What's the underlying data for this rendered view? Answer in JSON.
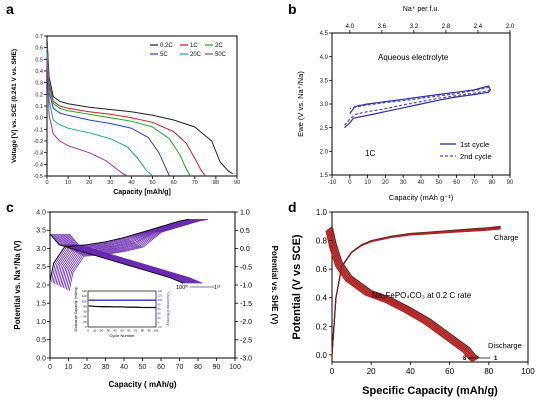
{
  "chart_data": [
    {
      "id": "a",
      "panel_label": "a",
      "type": "line",
      "xlabel": "Capacity [mAh/g]",
      "ylabel": "Voltage [V] vs. SCE (0.241 V vs. SHE)",
      "xlim": [
        0,
        90
      ],
      "ylim": [
        -0.5,
        0.7
      ],
      "xticks": [
        "0",
        "10",
        "20",
        "30",
        "40",
        "50",
        "60",
        "70",
        "80",
        "90"
      ],
      "yticks": [
        "-0.5",
        "-0.4",
        "-0.3",
        "-0.2",
        "-0.1",
        "0.0",
        "0.1",
        "0.2",
        "0.3",
        "0.4",
        "0.5",
        "0.6",
        "0.7"
      ],
      "series": [
        {
          "name": "0.2C",
          "color": "#222222",
          "x": [
            0,
            1,
            3,
            6,
            10,
            20,
            30,
            40,
            50,
            60,
            70,
            78,
            82,
            86,
            88
          ],
          "y": [
            0.68,
            0.35,
            0.18,
            0.14,
            0.12,
            0.09,
            0.07,
            0.05,
            0.02,
            -0.02,
            -0.08,
            -0.2,
            -0.38,
            -0.46,
            -0.48
          ]
        },
        {
          "name": "1C",
          "color": "#cc2222",
          "x": [
            0,
            1,
            3,
            6,
            10,
            20,
            30,
            40,
            50,
            60,
            66,
            70,
            73,
            75
          ],
          "y": [
            0.62,
            0.3,
            0.14,
            0.1,
            0.08,
            0.05,
            0.03,
            0.0,
            -0.04,
            -0.12,
            -0.22,
            -0.35,
            -0.45,
            -0.5
          ]
        },
        {
          "name": "2C",
          "color": "#22aa22",
          "x": [
            0,
            1,
            3,
            6,
            10,
            20,
            30,
            40,
            50,
            58,
            63,
            66,
            68
          ],
          "y": [
            0.6,
            0.27,
            0.12,
            0.08,
            0.06,
            0.03,
            0.0,
            -0.03,
            -0.08,
            -0.18,
            -0.32,
            -0.44,
            -0.5
          ]
        },
        {
          "name": "5C",
          "color": "#2244cc",
          "x": [
            0,
            1,
            3,
            6,
            10,
            20,
            30,
            40,
            48,
            53,
            56,
            58
          ],
          "y": [
            0.58,
            0.22,
            0.08,
            0.04,
            0.02,
            -0.02,
            -0.05,
            -0.09,
            -0.17,
            -0.3,
            -0.42,
            -0.5
          ]
        },
        {
          "name": "20C",
          "color": "#20a0b0",
          "x": [
            0,
            1,
            3,
            6,
            10,
            20,
            30,
            38,
            43,
            47,
            50
          ],
          "y": [
            0.55,
            0.15,
            -0.02,
            -0.06,
            -0.09,
            -0.13,
            -0.18,
            -0.25,
            -0.35,
            -0.45,
            -0.5
          ]
        },
        {
          "name": "50C",
          "color": "#b030b0",
          "x": [
            0,
            1,
            3,
            6,
            10,
            20,
            28,
            33,
            36,
            38
          ],
          "y": [
            0.5,
            0.02,
            -0.14,
            -0.2,
            -0.24,
            -0.3,
            -0.37,
            -0.44,
            -0.48,
            -0.5
          ]
        }
      ],
      "legend": "top-right",
      "grid": false
    },
    {
      "id": "b",
      "panel_label": "b",
      "type": "line",
      "xlabel": "Capacity (mAh g⁻¹)",
      "ylabel": "Ewe (V vs. Na⁺/Na)",
      "top_xlabel": "Na⁺ per f.u.",
      "top_xticks": [
        "4.0",
        "3.6",
        "3.2",
        "2.8",
        "2.4",
        "2.0"
      ],
      "xlim": [
        -10,
        90
      ],
      "ylim": [
        1.5,
        4.5
      ],
      "xticks": [
        "-10",
        "0",
        "10",
        "20",
        "30",
        "40",
        "50",
        "60",
        "70",
        "80",
        "90"
      ],
      "yticks": [
        "1.5",
        "2.0",
        "2.5",
        "3.0",
        "3.5",
        "4.0",
        "4.5"
      ],
      "annotations": [
        "Aqueous electrolyte",
        "1C"
      ],
      "series": [
        {
          "name": "1st cycle",
          "color": "#2233aa",
          "dash": false,
          "x": [
            -3,
            0,
            2,
            10,
            20,
            30,
            40,
            50,
            60,
            70,
            78,
            79,
            78,
            70,
            60,
            50,
            40,
            30,
            20,
            10,
            3,
            1,
            0
          ],
          "y": [
            2.5,
            2.6,
            2.7,
            2.76,
            2.84,
            2.92,
            3.0,
            3.08,
            3.15,
            3.2,
            3.25,
            3.3,
            3.38,
            3.3,
            3.25,
            3.2,
            3.15,
            3.1,
            3.05,
            3.0,
            2.95,
            2.85,
            2.8
          ]
        },
        {
          "name": "2nd cycle",
          "color": "#6644aa",
          "dash": true,
          "x": [
            -3,
            0,
            3,
            10,
            20,
            30,
            40,
            50,
            60,
            70,
            78,
            79,
            78,
            70,
            60,
            50,
            40,
            30,
            20,
            10,
            3,
            0
          ],
          "y": [
            2.55,
            2.68,
            2.78,
            2.84,
            2.9,
            2.98,
            3.05,
            3.12,
            3.18,
            3.23,
            3.28,
            3.32,
            3.35,
            3.28,
            3.22,
            3.17,
            3.12,
            3.07,
            3.03,
            2.98,
            2.93,
            2.9
          ]
        }
      ],
      "legend": "bottom-right",
      "grid": false
    },
    {
      "id": "c",
      "panel_label": "c",
      "type": "line",
      "xlabel": "Capacity ( mAh/g)",
      "ylabel": "Potential vs. Na⁺/Na (V)",
      "y2label": "Potential vs. SHE (V)",
      "xlim": [
        0,
        100
      ],
      "ylim": [
        0.0,
        4.0
      ],
      "y2lim": [
        -3.0,
        1.0
      ],
      "xticks": [
        "0",
        "10",
        "20",
        "30",
        "40",
        "50",
        "60",
        "70",
        "80",
        "90",
        "100"
      ],
      "yticks": [
        "0.0",
        "0.5",
        "1.0",
        "1.5",
        "2.0",
        "2.5",
        "3.0",
        "3.5",
        "4.0"
      ],
      "y2ticks": [
        "1.0",
        "0.5",
        "0.0",
        "-0.5",
        "-1.0",
        "-1.5",
        "-2.0",
        "-2.5",
        "-3.0"
      ],
      "annotations": [
        "100ᵗʰ",
        "1ˢᵗ"
      ],
      "charge_first": {
        "color": "#111111",
        "x": [
          0,
          2,
          8,
          20,
          30,
          40,
          50,
          60,
          70,
          75
        ],
        "y": [
          2.1,
          2.6,
          3.05,
          3.1,
          3.18,
          3.3,
          3.45,
          3.6,
          3.75,
          3.8
        ]
      },
      "discharge_first": {
        "color": "#111111",
        "x": [
          0,
          5,
          15,
          25,
          35,
          45,
          55,
          65,
          72
        ],
        "y": [
          3.4,
          3.1,
          2.95,
          2.8,
          2.65,
          2.5,
          2.35,
          2.2,
          2.05
        ]
      },
      "cycle_color": "#6a2ab0",
      "inset": {
        "type": "line",
        "xlabel": "Cycle Number",
        "ylabel": "Discharge Capacity (mAh/g)",
        "y2label": "Coulombic Efficiency",
        "xticks": [
          "0",
          "10",
          "20",
          "30",
          "40",
          "50",
          "60",
          "70",
          "80",
          "90",
          "100"
        ],
        "yticks": [
          "0",
          "20",
          "40",
          "60",
          "80",
          "100",
          "120",
          "140"
        ],
        "y2ticks": [
          "-20",
          "0",
          "20",
          "40",
          "60",
          "80",
          "100",
          "120",
          "140"
        ],
        "xlim": [
          0,
          100
        ],
        "ylim": [
          0,
          140
        ],
        "y2lim": [
          -20,
          140
        ],
        "series": [
          {
            "name": "Discharge Capacity",
            "color": "#111111",
            "x": [
              1,
              10,
              20,
              30,
              40,
              50,
              60,
              70,
              80,
              90,
              100
            ],
            "y": [
              82,
              80,
              79,
              79,
              78,
              78,
              77,
              77,
              76,
              76,
              76
            ]
          },
          {
            "name": "Coulombic Efficiency",
            "color": "#2233cc",
            "x": [
              1,
              10,
              20,
              30,
              40,
              50,
              60,
              70,
              80,
              90,
              100
            ],
            "y": [
              99,
              99,
              99,
              99,
              99,
              99,
              99,
              99,
              99,
              99,
              99
            ]
          }
        ]
      },
      "grid": false
    },
    {
      "id": "d",
      "panel_label": "d",
      "type": "line",
      "xlabel": "Specific Capacity (mAh/g)",
      "ylabel": "Potential (V vs SCE)",
      "xlim": [
        0,
        100
      ],
      "ylim": [
        -0.05,
        1.0
      ],
      "xticks": [
        "0",
        "20",
        "40",
        "60",
        "80",
        "100"
      ],
      "yticks": [
        "0.0",
        "0.2",
        "0.4",
        "0.6",
        "0.8",
        "1.0"
      ],
      "annotations": [
        "Charge",
        "Discharge",
        "Na₃FePO₄CO₃  at 0.2 C rate",
        "8",
        "1"
      ],
      "charge": {
        "color": "#b22222",
        "x": [
          0,
          2,
          5,
          10,
          15,
          20,
          30,
          40,
          50,
          60,
          70,
          80,
          86
        ],
        "y": [
          0.0,
          0.4,
          0.62,
          0.72,
          0.77,
          0.8,
          0.83,
          0.85,
          0.86,
          0.87,
          0.88,
          0.89,
          0.9
        ]
      },
      "discharge": {
        "color": "#b22222",
        "x": [
          0,
          2,
          5,
          10,
          15,
          20,
          30,
          40,
          50,
          60,
          65,
          70,
          73,
          75
        ],
        "y": [
          0.9,
          0.78,
          0.65,
          0.55,
          0.5,
          0.45,
          0.4,
          0.33,
          0.25,
          0.15,
          0.1,
          0.05,
          0.0,
          -0.02
        ]
      },
      "grid": false
    }
  ]
}
